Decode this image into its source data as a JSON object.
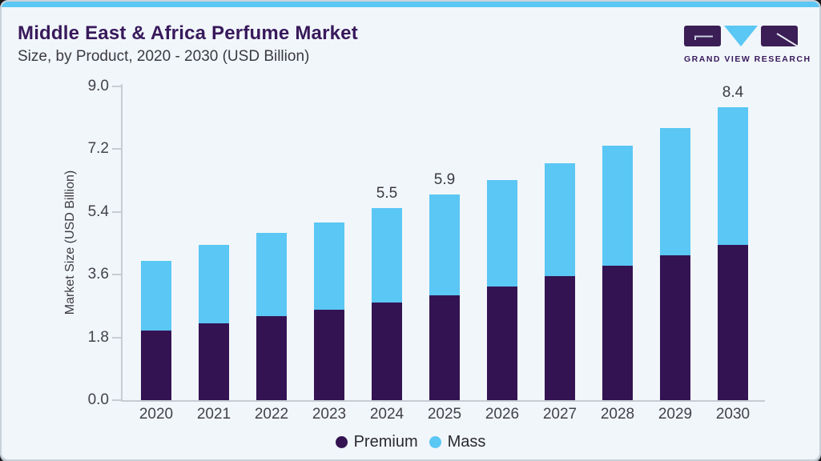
{
  "theme": {
    "accent_strip_color": "#5ac7f4",
    "brand_purple": "#38195b",
    "card_background": "#f1f6fa"
  },
  "header": {
    "title": "Middle East & Africa Perfume Market",
    "subtitle": "Size, by Product, 2020 - 2030 (USD Billion)"
  },
  "logo": {
    "text": "GRAND VIEW RESEARCH",
    "purple": "#3a1e55",
    "blue": "#5ac7f4"
  },
  "chart_data": {
    "type": "bar",
    "stacked": true,
    "title": "Middle East & Africa Perfume Market Size, by Product, 2020 - 2030 (USD Billion)",
    "categories": [
      "2020",
      "2021",
      "2022",
      "2023",
      "2024",
      "2025",
      "2026",
      "2027",
      "2028",
      "2029",
      "2030"
    ],
    "series": [
      {
        "name": "Premium",
        "color": "#341353",
        "values": [
          2.0,
          2.2,
          2.4,
          2.6,
          2.8,
          3.0,
          3.25,
          3.55,
          3.85,
          4.15,
          4.45
        ]
      },
      {
        "name": "Mass",
        "color": "#5ac7f4",
        "values": [
          2.0,
          2.25,
          2.4,
          2.5,
          2.7,
          2.9,
          3.05,
          3.25,
          3.45,
          3.65,
          3.95
        ]
      }
    ],
    "totals": [
      4.0,
      4.45,
      4.8,
      5.1,
      5.5,
      5.9,
      6.3,
      6.8,
      7.3,
      7.8,
      8.4
    ],
    "bar_labels": [
      "",
      "",
      "",
      "",
      "5.5",
      "5.9",
      "",
      "",
      "",
      "",
      "8.4"
    ],
    "ylabel": "Market Size (USD Billion)",
    "yticks": [
      "0.0",
      "1.8",
      "3.6",
      "5.4",
      "7.2",
      "9.0"
    ],
    "ylim": [
      0,
      9.0
    ],
    "grid": false,
    "legend_position": "bottom"
  }
}
